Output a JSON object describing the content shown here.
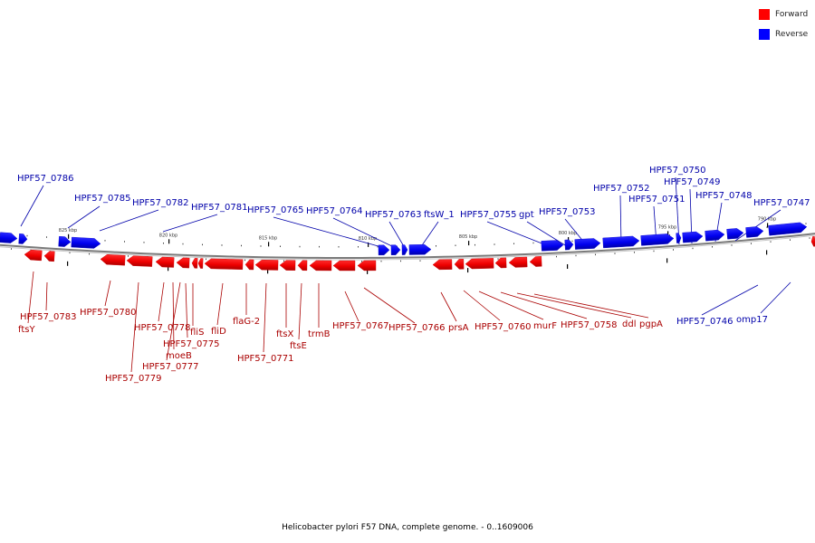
{
  "legend": [
    {
      "label": "Forward",
      "color": "#ff0000"
    },
    {
      "label": "Reverse",
      "color": "#0000ff"
    }
  ],
  "caption": "Helicobacter pylori F57 DNA, complete genome. - 0..1609006",
  "ticks": [
    "825 kbp",
    "820 kbp",
    "815 kbp",
    "810 kbp",
    "805 kbp",
    "800 kbp",
    "795 kbp",
    "790 kbp"
  ],
  "reverse_genes": [
    "HPF57_0786",
    "HPF57_0785",
    "HPF57_0782",
    "HPF57_0781",
    "HPF57_0765",
    "HPF57_0764",
    "HPF57_0763",
    "ftsW_1",
    "HPF57_0755",
    "gpt",
    "HPF57_0753",
    "HPF57_0752",
    "HPF57_0751",
    "HPF57_0750",
    "HPF57_0749",
    "HPF57_0748",
    "HPF57_0747",
    "HPF57_0746",
    "omp17"
  ],
  "forward_genes": [
    "HPF57_0783",
    "ftsY",
    "HPF57_0780",
    "HPF57_0779",
    "HPF57_0778",
    "moeB",
    "HPF57_0777",
    "HPF57_0775",
    "fliS",
    "fliD",
    "flaG-2",
    "HPF57_0771",
    "ftsX",
    "ftsE",
    "trmB",
    "HPF57_0767",
    "HPF57_0766",
    "prsA",
    "HPF57_0760",
    "murF",
    "HPF57_0758",
    "ddl",
    "pgpA"
  ],
  "colors": {
    "forward": "#ff0000",
    "reverse": "#0000ff",
    "forward_label": "#aa0000",
    "reverse_label": "#0000aa",
    "axis": "#7a7a7a"
  }
}
